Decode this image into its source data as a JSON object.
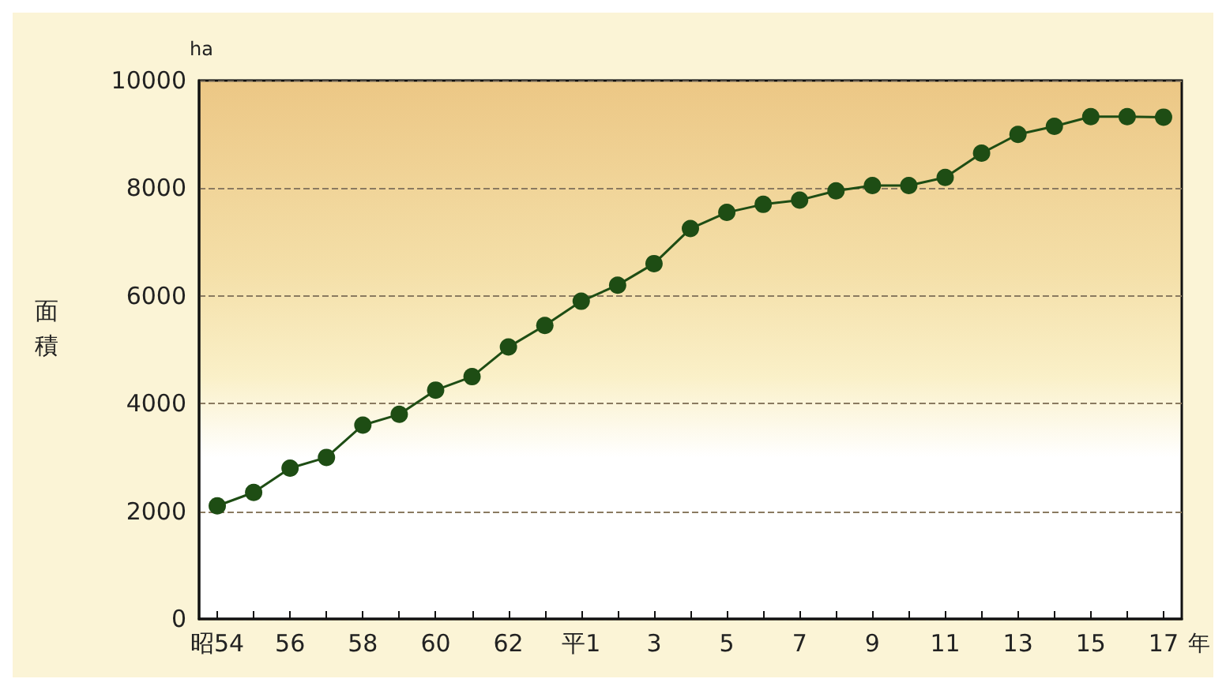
{
  "chart_data": {
    "type": "line",
    "ylabel": "面積",
    "xlabel": "年",
    "annotations": [
      "ha"
    ],
    "categories": [
      "昭54",
      null,
      "56",
      null,
      "58",
      null,
      "60",
      null,
      "62",
      null,
      "平1",
      null,
      "3",
      null,
      "5",
      null,
      "7",
      null,
      "9",
      null,
      "11",
      null,
      "13",
      null,
      "15",
      null,
      "17"
    ],
    "series": [
      {
        "color": "#1e4d14",
        "values": [
          2100,
          2350,
          2800,
          3000,
          3600,
          3800,
          4250,
          4500,
          5050,
          5450,
          5900,
          6200,
          6600,
          7250,
          7550,
          7700,
          7780,
          7950,
          8050,
          8050,
          8200,
          8650,
          9000,
          9150,
          9330,
          9330,
          9320
        ]
      }
    ],
    "ylim": [
      0,
      10000
    ],
    "yticks": [
      0,
      2000,
      4000,
      6000,
      8000,
      10000
    ],
    "grid": "y",
    "marker": "circle",
    "line_style": "solid"
  }
}
